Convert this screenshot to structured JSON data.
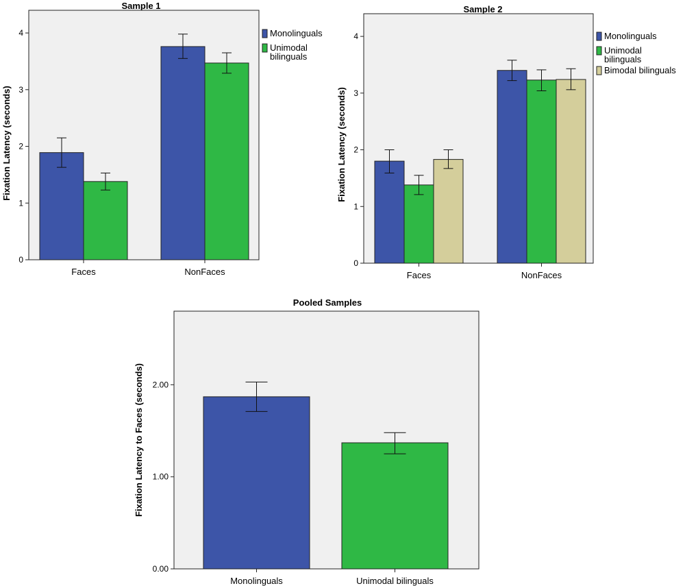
{
  "chart_data": [
    {
      "type": "bar",
      "title": "Sample 1",
      "xlabel": "",
      "ylabel": "Fixation Latency (seconds)",
      "ylim": [
        0,
        4.4
      ],
      "yticks": [
        "0",
        "1",
        "2",
        "3",
        "4"
      ],
      "ytick_values": [
        0,
        1,
        2,
        3,
        4
      ],
      "categories": [
        "Faces",
        "NonFaces"
      ],
      "legend_position": "top-right",
      "series": [
        {
          "name": "Monolinguals",
          "legend_lines": [
            "Monolinguals"
          ],
          "color": "#3d55a8",
          "values": [
            1.89,
            3.76
          ],
          "err_low": [
            1.63,
            3.55
          ],
          "err_high": [
            2.15,
            3.98
          ]
        },
        {
          "name": "Unimodal bilinguals",
          "legend_lines": [
            "Unimodal",
            "bilinguals"
          ],
          "color": "#2fb845",
          "values": [
            1.38,
            3.47
          ],
          "err_low": [
            1.23,
            3.29
          ],
          "err_high": [
            1.53,
            3.65
          ]
        }
      ]
    },
    {
      "type": "bar",
      "title": "Sample 2",
      "xlabel": "",
      "ylabel": "Fixation Latency (seconds)",
      "ylim": [
        0,
        4.4
      ],
      "yticks": [
        "0",
        "1",
        "2",
        "3",
        "4"
      ],
      "ytick_values": [
        0,
        1,
        2,
        3,
        4
      ],
      "categories": [
        "Faces",
        "NonFaces"
      ],
      "legend_position": "top-right",
      "series": [
        {
          "name": "Monolinguals",
          "legend_lines": [
            "Monolinguals"
          ],
          "color": "#3d55a8",
          "values": [
            1.8,
            3.4
          ],
          "err_low": [
            1.59,
            3.22
          ],
          "err_high": [
            2.0,
            3.58
          ]
        },
        {
          "name": "Unimodal bilinguals",
          "legend_lines": [
            "Unimodal",
            "bilinguals"
          ],
          "color": "#2fb845",
          "values": [
            1.38,
            3.23
          ],
          "err_low": [
            1.21,
            3.04
          ],
          "err_high": [
            1.55,
            3.41
          ]
        },
        {
          "name": "Bimodal bilinguals",
          "legend_lines": [
            "Bimodal bilinguals"
          ],
          "color": "#d4ce9b",
          "values": [
            1.83,
            3.24
          ],
          "err_low": [
            1.67,
            3.06
          ],
          "err_high": [
            2.0,
            3.43
          ]
        }
      ]
    },
    {
      "type": "bar",
      "title": "Pooled Samples",
      "xlabel": "",
      "ylabel": "Fixation Latency to Faces (seconds)",
      "ylim": [
        0,
        2.8
      ],
      "yticks": [
        "0.00",
        "1.00",
        "2.00"
      ],
      "ytick_values": [
        0,
        1,
        2
      ],
      "categories": [
        "Monolinguals",
        "Unimodal bilinguals"
      ],
      "colors": [
        "#3d55a8",
        "#2fb845"
      ],
      "values": [
        1.87,
        1.37
      ],
      "err_low": [
        1.71,
        1.25
      ],
      "err_high": [
        2.03,
        1.48
      ]
    }
  ]
}
